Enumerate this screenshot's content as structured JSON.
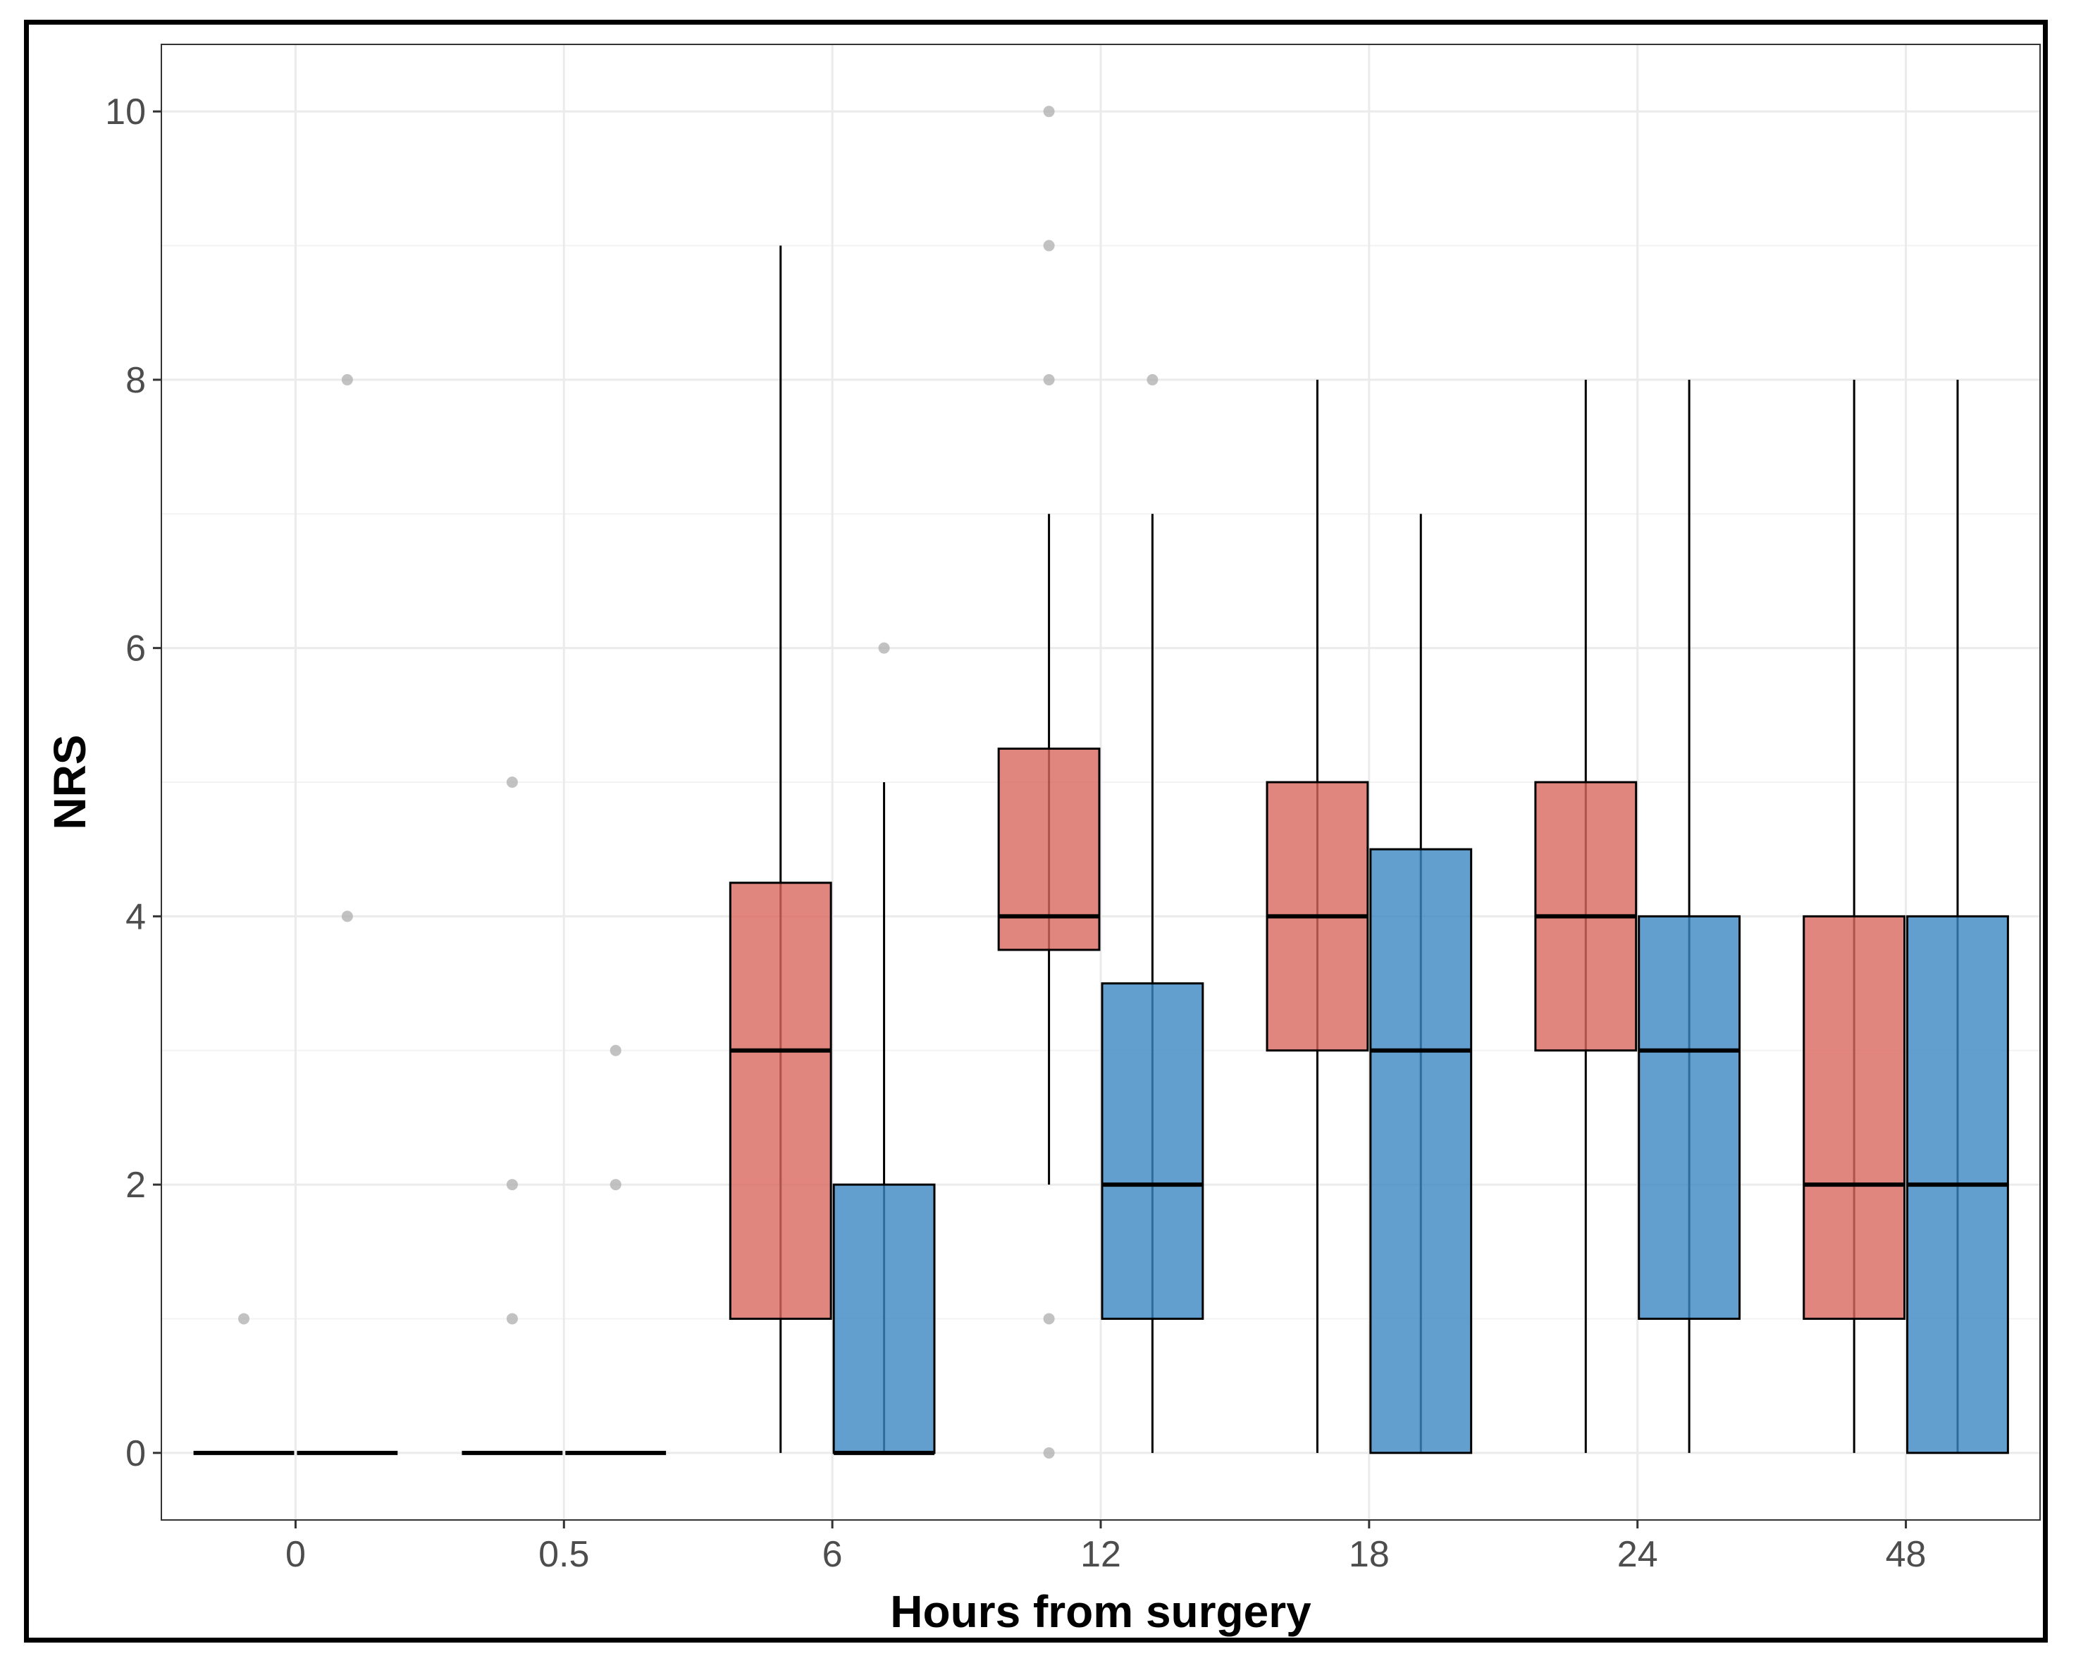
{
  "colors": {
    "group_a": "#d9685e",
    "group_b": "#3b87c2",
    "outlier": "#b3b3b3",
    "grid": "#ebebeb",
    "median": "#000000"
  },
  "chart_data": {
    "type": "box",
    "title": "",
    "xlabel": "Hours from surgery",
    "ylabel": "NRS",
    "ylim": [
      -0.5,
      10.5
    ],
    "yticks": [
      0,
      2,
      4,
      6,
      8,
      10
    ],
    "grid": true,
    "legend": "none",
    "categories": [
      "0",
      "0.5",
      "6",
      "12",
      "18",
      "24",
      "48"
    ],
    "series": [
      {
        "name": "group_a",
        "boxes": [
          {
            "min": 0,
            "q1": 0,
            "median": 0,
            "q3": 0,
            "max": 0,
            "outliers": [
              1
            ]
          },
          {
            "min": 0,
            "q1": 0,
            "median": 0,
            "q3": 0,
            "max": 0,
            "outliers": [
              5,
              2,
              1
            ]
          },
          {
            "min": 0,
            "q1": 1,
            "median": 3,
            "q3": 4.25,
            "max": 9,
            "outliers": []
          },
          {
            "min": 2,
            "q1": 3.75,
            "median": 4,
            "q3": 5.25,
            "max": 7,
            "outliers": [
              10,
              9,
              8,
              1,
              0
            ]
          },
          {
            "min": 0,
            "q1": 3,
            "median": 4,
            "q3": 5,
            "max": 8,
            "outliers": []
          },
          {
            "min": 0,
            "q1": 3,
            "median": 4,
            "q3": 5,
            "max": 8,
            "outliers": []
          },
          {
            "min": 0,
            "q1": 1,
            "median": 2,
            "q3": 4,
            "max": 8,
            "outliers": []
          }
        ]
      },
      {
        "name": "group_b",
        "boxes": [
          {
            "min": 0,
            "q1": 0,
            "median": 0,
            "q3": 0,
            "max": 0,
            "outliers": [
              8,
              4
            ]
          },
          {
            "min": 0,
            "q1": 0,
            "median": 0,
            "q3": 0,
            "max": 0,
            "outliers": [
              3,
              2
            ]
          },
          {
            "min": 0,
            "q1": 0,
            "median": 0,
            "q3": 2,
            "max": 5,
            "outliers": [
              6
            ]
          },
          {
            "min": 0,
            "q1": 1,
            "median": 2,
            "q3": 3.5,
            "max": 7,
            "outliers": [
              8
            ]
          },
          {
            "min": 0,
            "q1": 0,
            "median": 3,
            "q3": 4.5,
            "max": 7,
            "outliers": []
          },
          {
            "min": 0,
            "q1": 1,
            "median": 3,
            "q3": 4,
            "max": 8,
            "outliers": []
          },
          {
            "min": 0,
            "q1": 0,
            "median": 2,
            "q3": 4,
            "max": 8,
            "outliers": []
          }
        ]
      }
    ]
  }
}
